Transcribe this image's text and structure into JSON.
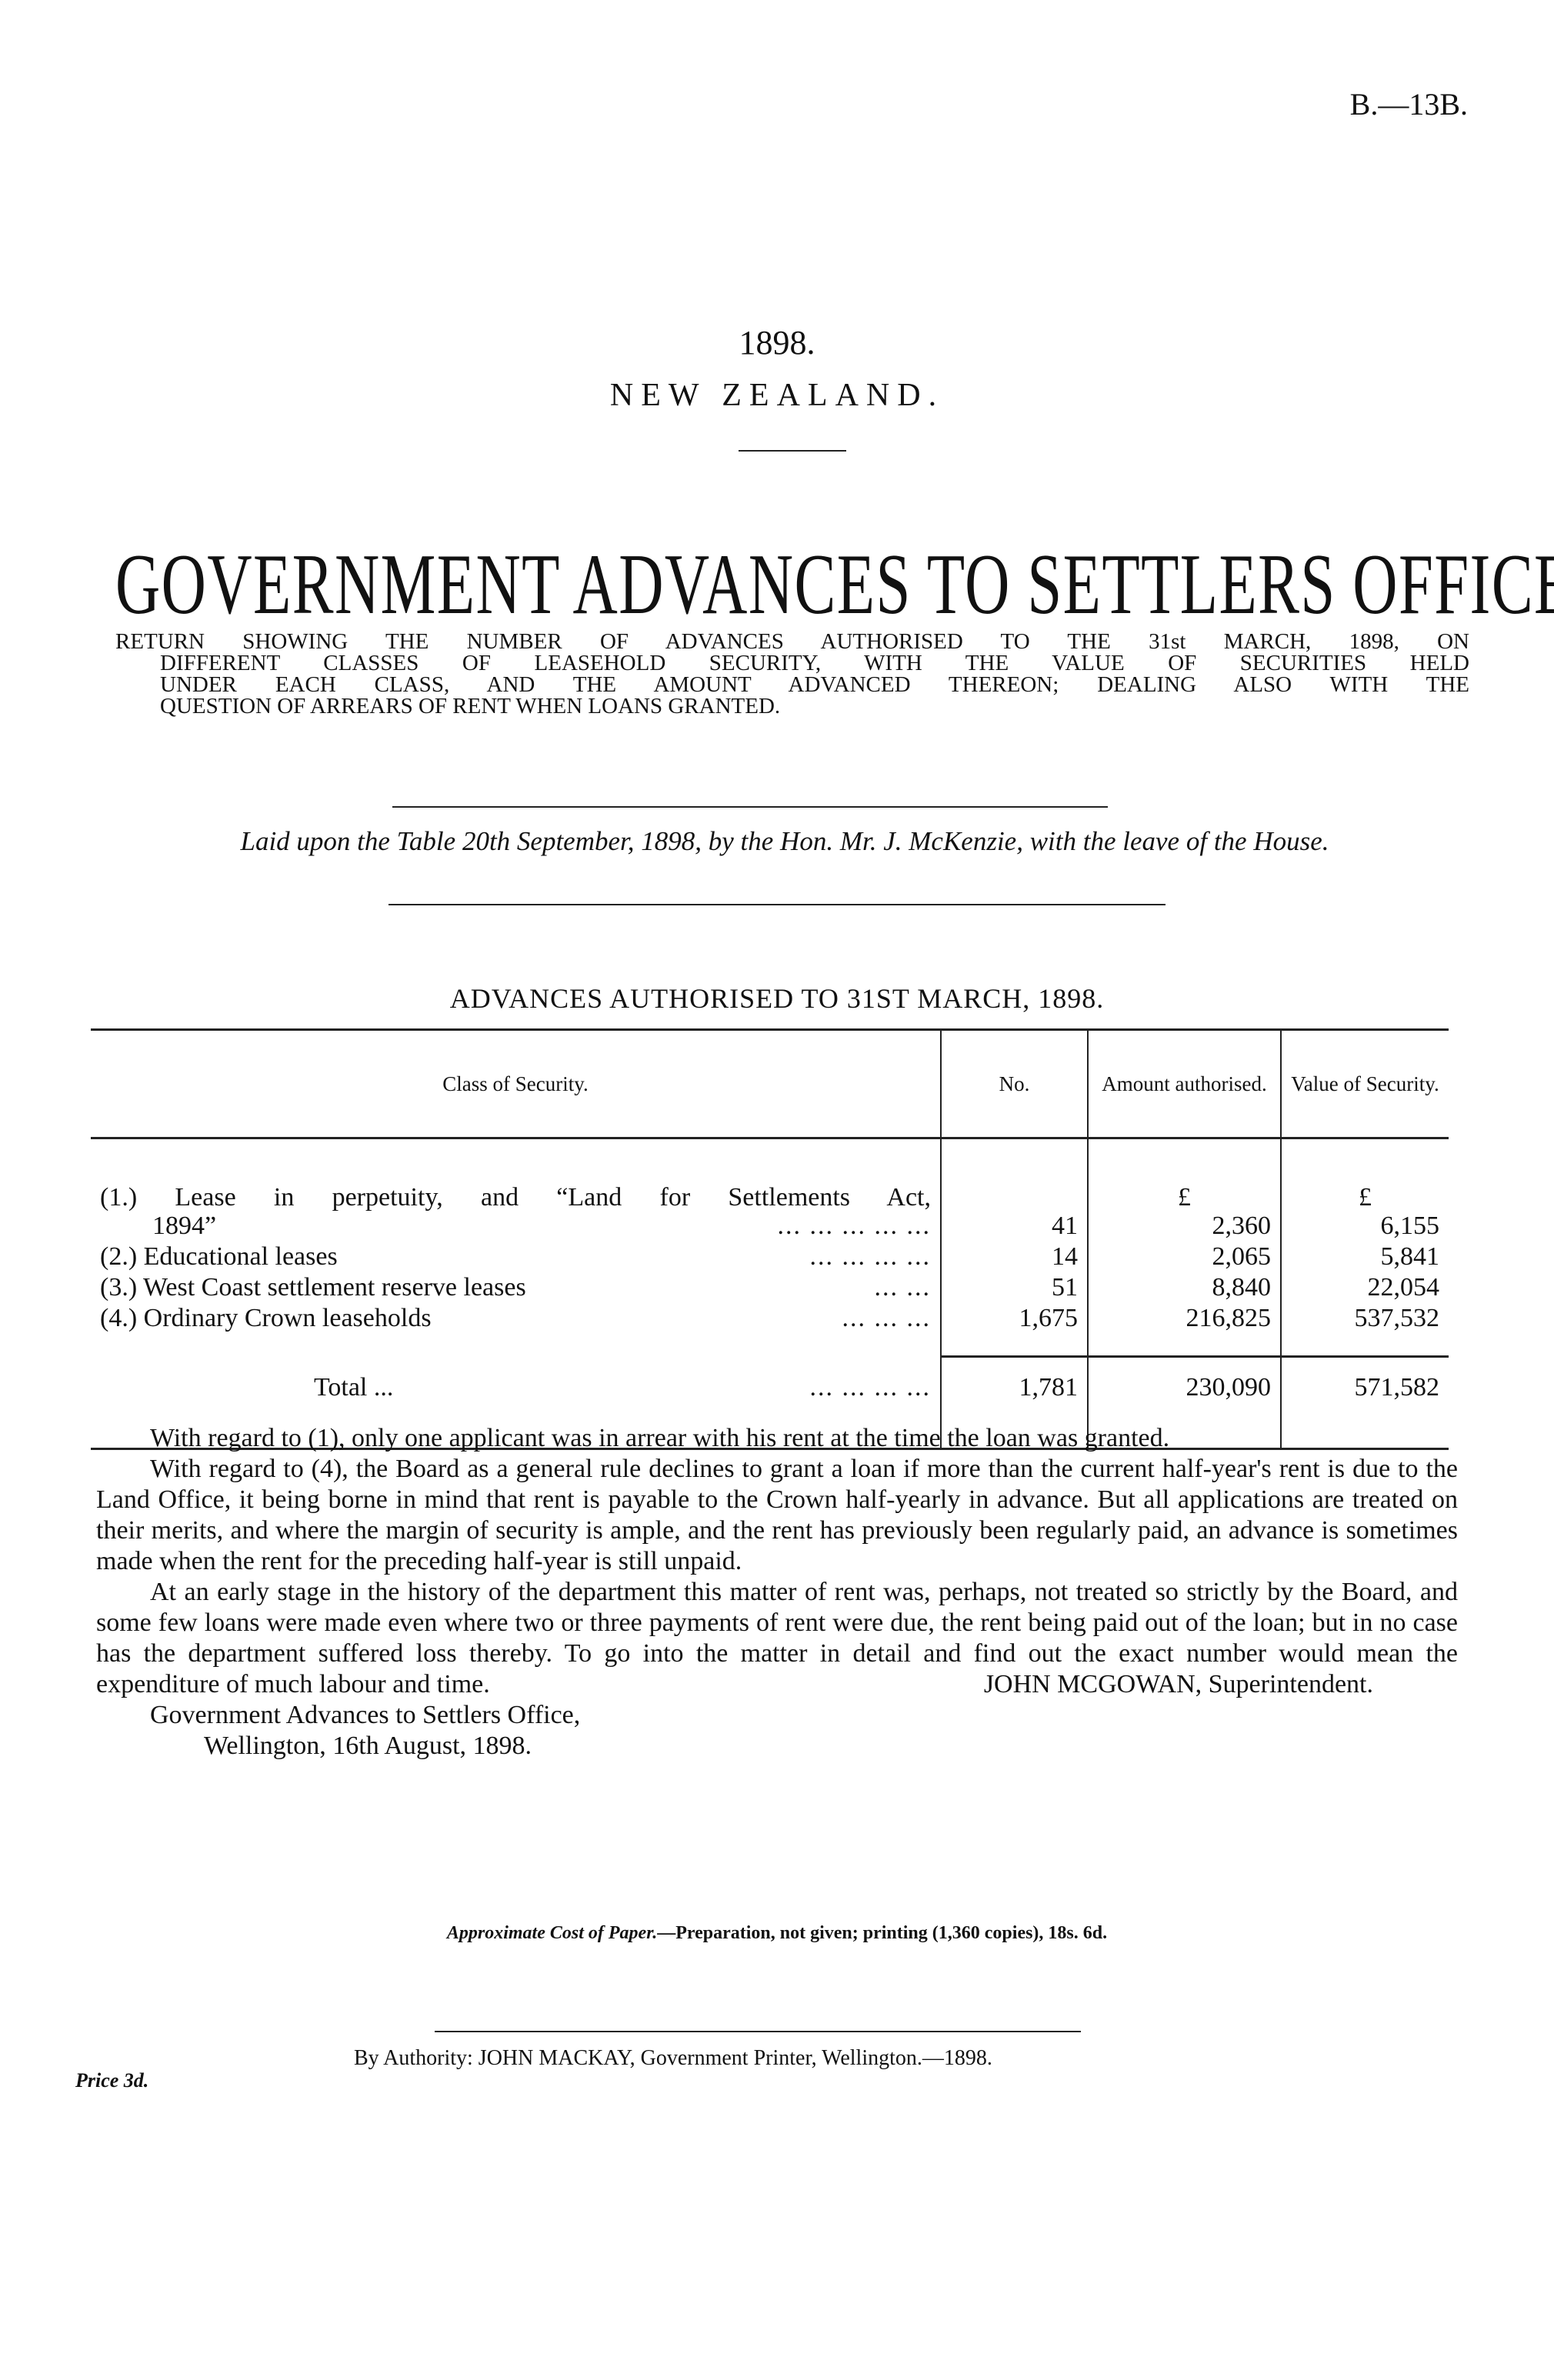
{
  "header": {
    "reference": "B.—13B.",
    "year": "1898.",
    "country": "NEW ZEALAND."
  },
  "title": "GOVERNMENT ADVANCES TO SETTLERS OFFICE.",
  "subtitle": [
    "RETURN SHOWING THE NUMBER OF ADVANCES AUTHORISED TO THE 31st MARCH, 1898, ON",
    "DIFFERENT CLASSES OF LEASEHOLD SECURITY, WITH THE VALUE OF SECURITIES HELD",
    "UNDER EACH CLASS, AND THE AMOUNT ADVANCED THEREON; DEALING ALSO WITH THE",
    "QUESTION OF ARREARS OF RENT WHEN LOANS GRANTED."
  ],
  "laid": "Laid upon the Table 20th September, 1898, by the Hon. Mr. J. McKenzie, with the leave of the House.",
  "table": {
    "caption": "ADVANCES AUTHORISED TO 31ST MARCH, 1898.",
    "headers": [
      "Class of Security.",
      "No.",
      "Amount authorised.",
      "Value of Security."
    ],
    "currency": "£",
    "rows": [
      {
        "label": "(1.) Lease in perpetuity, and “Land for Settlements Act,",
        "label2": "1894”",
        "dots": "...   ...   ...   ...   ...",
        "no": "41",
        "amount": "2,360",
        "value": "6,155"
      },
      {
        "label": "(2.) Educational leases",
        "dots": "...   ...   ...   ...",
        "no": "14",
        "amount": "2,065",
        "value": "5,841"
      },
      {
        "label": "(3.) West Coast settlement reserve leases",
        "dots": "...   ...",
        "no": "51",
        "amount": "8,840",
        "value": "22,054"
      },
      {
        "label": "(4.) Ordinary Crown leaseholds",
        "dots": "...   ...   ...",
        "no": "1,675",
        "amount": "216,825",
        "value": "537,532"
      }
    ],
    "total": {
      "label": "Total ...",
      "dots": "...   ...   ...   ...",
      "no": "1,781",
      "amount": "230,090",
      "value": "571,582"
    }
  },
  "paragraphs": [
    "With regard to (1), only one applicant was in arrear with his rent at the time the loan was granted.",
    "With regard to (4), the Board as a general rule declines to grant a loan if more than the current half-year's rent is due to the Land Office, it being borne in mind that rent is payable to the Crown half-yearly in advance. But all applications are treated on their merits, and where the margin of security is ample, and the rent has previously been regularly paid, an advance is sometimes made when the rent for the preceding half-year is still unpaid.",
    "At an early stage in the history of the department this matter of rent was, perhaps, not treated so strictly by the Board, and some few loans were made even where two or three payments of rent were due, the rent being paid out of the loan; but in no case has the department suffered loss thereby. To go into the matter in detail and find out the exact number would mean the expenditure of much labour and time."
  ],
  "signature": "JOHN MCGOWAN, Superintendent.",
  "address": [
    "Government Advances to Settlers Office,",
    "Wellington, 16th August, 1898."
  ],
  "footer": {
    "cost_label": "Approximate Cost of Paper.",
    "cost_text": "—Preparation, not given; printing (1,360 copies), 18s. 6d.",
    "authority": "By Authority: JOHN MACKAY, Government Printer, Wellington.—1898.",
    "price": "Price 3d."
  }
}
